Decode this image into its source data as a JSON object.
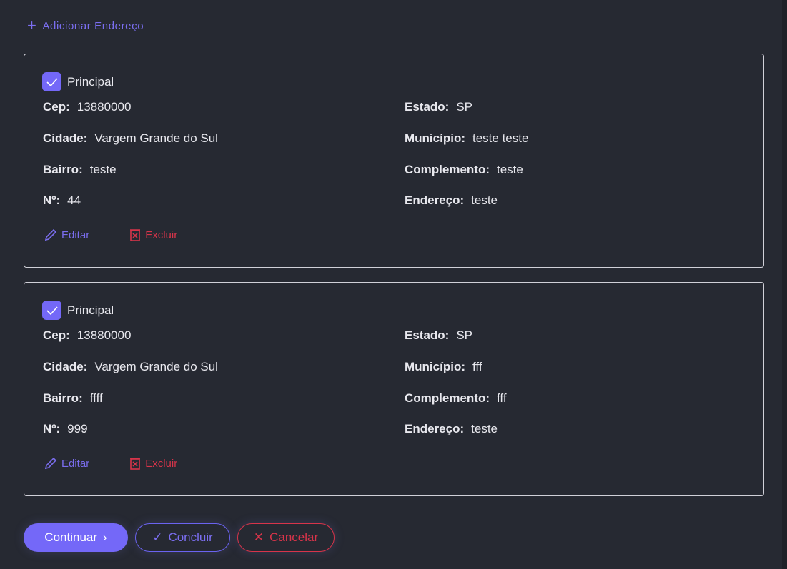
{
  "add_address_label": "Adicionar Endereço",
  "labels": {
    "cep": "Cep:",
    "cidade": "Cidade:",
    "bairro": "Bairro:",
    "numero": "Nº:",
    "estado": "Estado:",
    "municipio": "Município:",
    "complemento": "Complemento:",
    "endereco": "Endereço:",
    "principal": "Principal",
    "edit": "Editar",
    "delete": "Excluir"
  },
  "addresses": [
    {
      "principal": true,
      "cep": "13880000",
      "cidade": "Vargem Grande do Sul",
      "bairro": "teste",
      "numero": "44",
      "estado": "SP",
      "municipio": "teste teste",
      "complemento": "teste",
      "endereco": "teste"
    },
    {
      "principal": true,
      "cep": "13880000",
      "cidade": "Vargem Grande do Sul",
      "bairro": "ffff",
      "numero": "999",
      "estado": "SP",
      "municipio": "fff",
      "complemento": "fff",
      "endereco": "teste"
    }
  ],
  "buttons": {
    "continue": "Continuar",
    "finish": "Concluir",
    "cancel": "Cancelar"
  },
  "colors": {
    "accent": "#7468f8",
    "danger": "#d8344a",
    "background": "#262932"
  }
}
